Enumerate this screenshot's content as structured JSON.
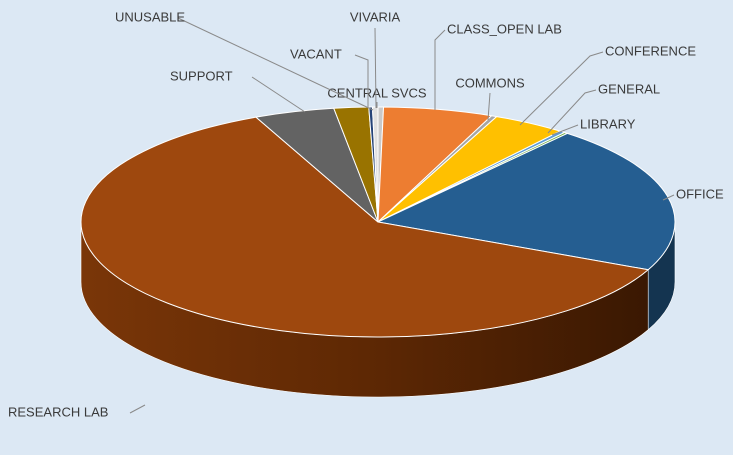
{
  "chart_data": {
    "type": "pie3d",
    "categories": [
      "CENTRAL SVCS",
      "CLASS_OPEN LAB",
      "COMMONS",
      "CONFERENCE",
      "GENERAL",
      "LIBRARY",
      "OFFICE",
      "RESEARCH LAB",
      "SUPPORT",
      "VACANT",
      "UNUSABLE",
      "VIVARIA"
    ],
    "values": [
      0.3,
      6,
      0.3,
      4,
      0.3,
      0.2,
      21,
      62,
      4.4,
      1.9,
      0.2,
      0.3
    ],
    "colors": [
      "#c9c9c9",
      "#ed7d31",
      "#a5a5a5",
      "#ffc000",
      "#5b9bd5",
      "#70ad47",
      "#255e91",
      "#9e480e",
      "#636363",
      "#997300",
      "#264478",
      "#e0e0e0"
    ]
  }
}
